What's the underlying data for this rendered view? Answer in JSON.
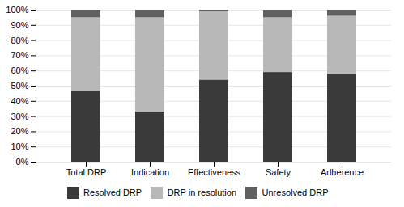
{
  "chart_data": {
    "type": "bar",
    "stacked": true,
    "categories": [
      "Total DRP",
      "Indication",
      "Effectiveness",
      "Safety",
      "Adherence"
    ],
    "series": [
      {
        "name": "Resolved DRP",
        "color": "#3a3a3a",
        "values": [
          47,
          33,
          54,
          59,
          58
        ]
      },
      {
        "name": "DRP in resolution",
        "color": "#b8b8b8",
        "values": [
          48,
          62,
          45,
          36,
          38
        ]
      },
      {
        "name": "Unresolved DRP",
        "color": "#606060",
        "values": [
          5,
          5,
          1,
          5,
          4
        ]
      }
    ],
    "ylim": [
      0,
      100
    ],
    "yticks": [
      {
        "value": 0,
        "label": "0%"
      },
      {
        "value": 10,
        "label": "10%"
      },
      {
        "value": 20,
        "label": "20%"
      },
      {
        "value": 30,
        "label": "30%"
      },
      {
        "value": 40,
        "label": "40%"
      },
      {
        "value": 50,
        "label": "50%"
      },
      {
        "value": 60,
        "label": "60%"
      },
      {
        "value": 70,
        "label": "70%"
      },
      {
        "value": 80,
        "label": "80%"
      },
      {
        "value": 90,
        "label": "90%"
      },
      {
        "value": 100,
        "label": "100%"
      }
    ],
    "grid": true,
    "legend": "bottom"
  }
}
